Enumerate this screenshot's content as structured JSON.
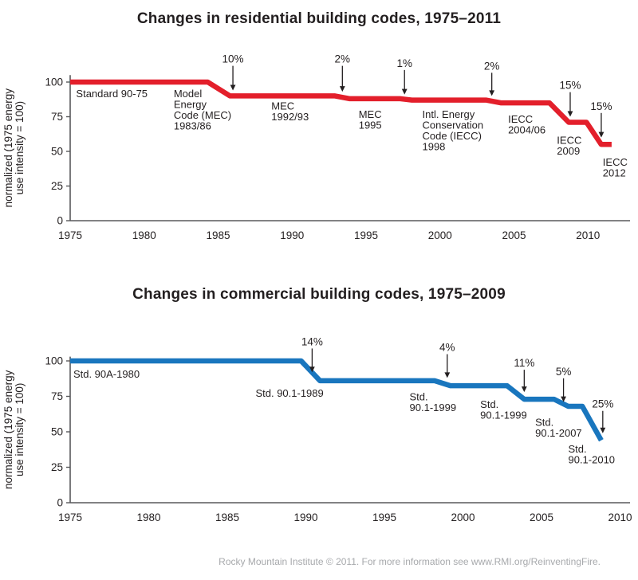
{
  "footer": {
    "text": "Rocky Mountain Institute © 2011. For more information see www.RMI.org/ReinventingFire."
  },
  "chart_data": [
    {
      "type": "line",
      "title": "Changes in residential building codes, 1975–2011",
      "ylabel_lines": [
        "normalized (1975 energy",
        "use intensity = 100)"
      ],
      "color": "#e31f2b",
      "axis_color": "#58595b",
      "x_ticks": [
        1975,
        1980,
        1985,
        1990,
        1995,
        2000,
        2005,
        2010
      ],
      "y_ticks": [
        0,
        25,
        50,
        75,
        100
      ],
      "xlim": [
        1975,
        2012.9
      ],
      "ylim": [
        0,
        105
      ],
      "grid": false,
      "legend": "none",
      "series": [
        {
          "name": "Residential building code energy use intensity",
          "points": [
            [
              1975,
              100
            ],
            [
              1984.3,
              100
            ],
            [
              1985.8,
              90
            ],
            [
              1992.9,
              90
            ],
            [
              1993.9,
              88
            ],
            [
              1997.3,
              88
            ],
            [
              1998.1,
              87
            ],
            [
              2003.1,
              87
            ],
            [
              2004.1,
              85
            ],
            [
              2007.4,
              85
            ],
            [
              2008.7,
              71
            ],
            [
              2009.9,
              71
            ],
            [
              2010.9,
              55
            ],
            [
              2011.6,
              55
            ]
          ]
        }
      ],
      "labels": [
        {
          "x": 1975.4,
          "v": 96,
          "lines": [
            "Standard 90-75"
          ]
        },
        {
          "x": 1982.0,
          "v": 96,
          "lines": [
            "Model",
            "Energy",
            "Code (MEC)",
            "1983/86"
          ]
        },
        {
          "x": 1988.6,
          "v": 87,
          "lines": [
            "MEC",
            "1992/93"
          ]
        },
        {
          "x": 1994.5,
          "v": 81,
          "lines": [
            "MEC",
            "1995"
          ]
        },
        {
          "x": 1998.8,
          "v": 81,
          "lines": [
            "Intl. Energy",
            "Conservation",
            "Code (IECC)",
            "1998"
          ]
        },
        {
          "x": 2004.6,
          "v": 77.5,
          "lines": [
            "IECC",
            "2004/06"
          ]
        },
        {
          "x": 2007.9,
          "v": 62.5,
          "lines": [
            "IECC",
            "2009"
          ]
        },
        {
          "x": 2011.0,
          "v": 46.5,
          "lines": [
            "IECC",
            "2012"
          ]
        }
      ],
      "arrows": [
        {
          "text": "10%",
          "x": 1986.0,
          "text_v": 114,
          "tip_v": 94
        },
        {
          "text": "2%",
          "x": 1993.4,
          "text_v": 114,
          "tip_v": 93
        },
        {
          "text": "1%",
          "x": 1997.6,
          "text_v": 111,
          "tip_v": 91
        },
        {
          "text": "2%",
          "x": 2003.5,
          "text_v": 109,
          "tip_v": 90
        },
        {
          "text": "15%",
          "x": 2008.8,
          "text_v": 95,
          "tip_v": 75
        },
        {
          "text": "15%",
          "x": 2010.9,
          "text_v": 80,
          "tip_v": 60
        }
      ]
    },
    {
      "type": "line",
      "title": "Changes in commercial building codes, 1975–2009",
      "ylabel_lines": [
        "normalized (1975 energy",
        "use intensity = 100)"
      ],
      "color": "#1976be",
      "axis_color": "#58595b",
      "x_ticks": [
        1975,
        1980,
        1985,
        1990,
        1995,
        2000,
        2005,
        2010
      ],
      "y_ticks": [
        0,
        25,
        50,
        75,
        100
      ],
      "xlim": [
        1975,
        2010.6
      ],
      "ylim": [
        0,
        103
      ],
      "grid": false,
      "legend": "none",
      "series": [
        {
          "name": "Commercial building code energy use intensity",
          "points": [
            [
              1975,
              100
            ],
            [
              1989.7,
              100
            ],
            [
              1990.9,
              86
            ],
            [
              1998.2,
              86
            ],
            [
              1999.2,
              82.5
            ],
            [
              2002.8,
              82.5
            ],
            [
              2003.9,
              73
            ],
            [
              2005.8,
              73
            ],
            [
              2006.7,
              68
            ],
            [
              2007.6,
              68
            ],
            [
              2008.8,
              44
            ]
          ]
        }
      ],
      "labels": [
        {
          "x": 1975.2,
          "v": 95,
          "lines": [
            "Std. 90A-1980"
          ]
        },
        {
          "x": 1986.8,
          "v": 81.5,
          "lines": [
            "Std. 90.1-1989"
          ]
        },
        {
          "x": 1996.6,
          "v": 79,
          "lines": [
            "Std.",
            "90.1-1999"
          ]
        },
        {
          "x": 2001.1,
          "v": 73.5,
          "lines": [
            "Std.",
            "90.1-1999"
          ]
        },
        {
          "x": 2004.6,
          "v": 61,
          "lines": [
            "Std.",
            "90.1-2007"
          ]
        },
        {
          "x": 2006.7,
          "v": 42,
          "lines": [
            "Std.",
            "90.1-2010"
          ]
        }
      ],
      "arrows": [
        {
          "text": "14%",
          "x": 1990.4,
          "text_v": 111,
          "tip_v": 92
        },
        {
          "text": "4%",
          "x": 1999.0,
          "text_v": 107,
          "tip_v": 88
        },
        {
          "text": "11%",
          "x": 2003.9,
          "text_v": 96,
          "tip_v": 78
        },
        {
          "text": "5%",
          "x": 2006.4,
          "text_v": 90,
          "tip_v": 71
        },
        {
          "text": "25%",
          "x": 2008.9,
          "text_v": 67,
          "tip_v": 49
        }
      ]
    }
  ]
}
